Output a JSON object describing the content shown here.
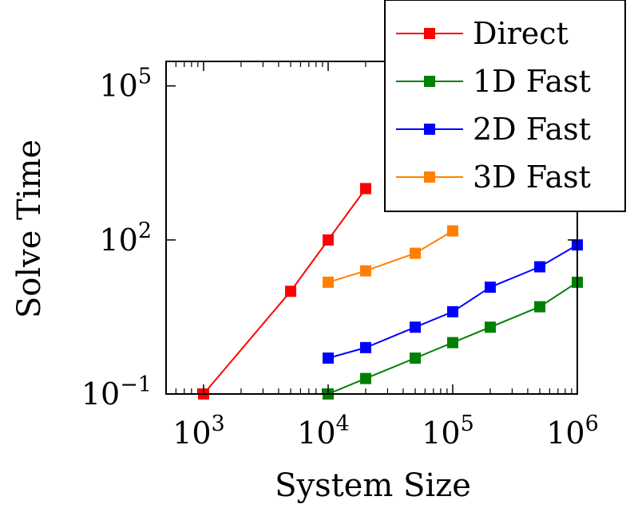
{
  "chart_data": {
    "type": "line",
    "title": "",
    "xlabel": "System Size",
    "ylabel": "Solve Time",
    "x_scale": "log",
    "y_scale": "log",
    "xlim": [
      500,
      1000000
    ],
    "ylim": [
      0.1,
      300000
    ],
    "x_ticks": [
      {
        "value": 1000,
        "base": "10",
        "exp": "3"
      },
      {
        "value": 10000,
        "base": "10",
        "exp": "4"
      },
      {
        "value": 100000,
        "base": "10",
        "exp": "5"
      },
      {
        "value": 1000000,
        "base": "10",
        "exp": "6"
      }
    ],
    "y_ticks": [
      {
        "value": 0.1,
        "base": "10",
        "exp": "−1"
      },
      {
        "value": 100,
        "base": "10",
        "exp": "2"
      },
      {
        "value": 100000,
        "base": "10",
        "exp": "5"
      }
    ],
    "grid": false,
    "legend_position": "top-right",
    "series": [
      {
        "name": "Direct",
        "color": "#ff0000",
        "x": [
          1000,
          5000,
          10000,
          20000
        ],
        "y": [
          0.1,
          10,
          100,
          1000
        ]
      },
      {
        "name": "1D Fast",
        "color": "#008000",
        "x": [
          10000,
          20000,
          50000,
          100000,
          200000,
          500000,
          1000000
        ],
        "y": [
          0.1,
          0.2,
          0.5,
          1,
          2,
          5,
          15
        ]
      },
      {
        "name": "2D Fast",
        "color": "#0000ff",
        "x": [
          10000,
          20000,
          50000,
          100000,
          200000,
          500000,
          1000000
        ],
        "y": [
          0.5,
          0.8,
          2,
          4,
          12,
          30,
          80
        ]
      },
      {
        "name": "3D Fast",
        "color": "#ff8000",
        "x": [
          10000,
          20000,
          50000,
          100000
        ],
        "y": [
          15,
          25,
          55,
          150
        ]
      }
    ]
  }
}
